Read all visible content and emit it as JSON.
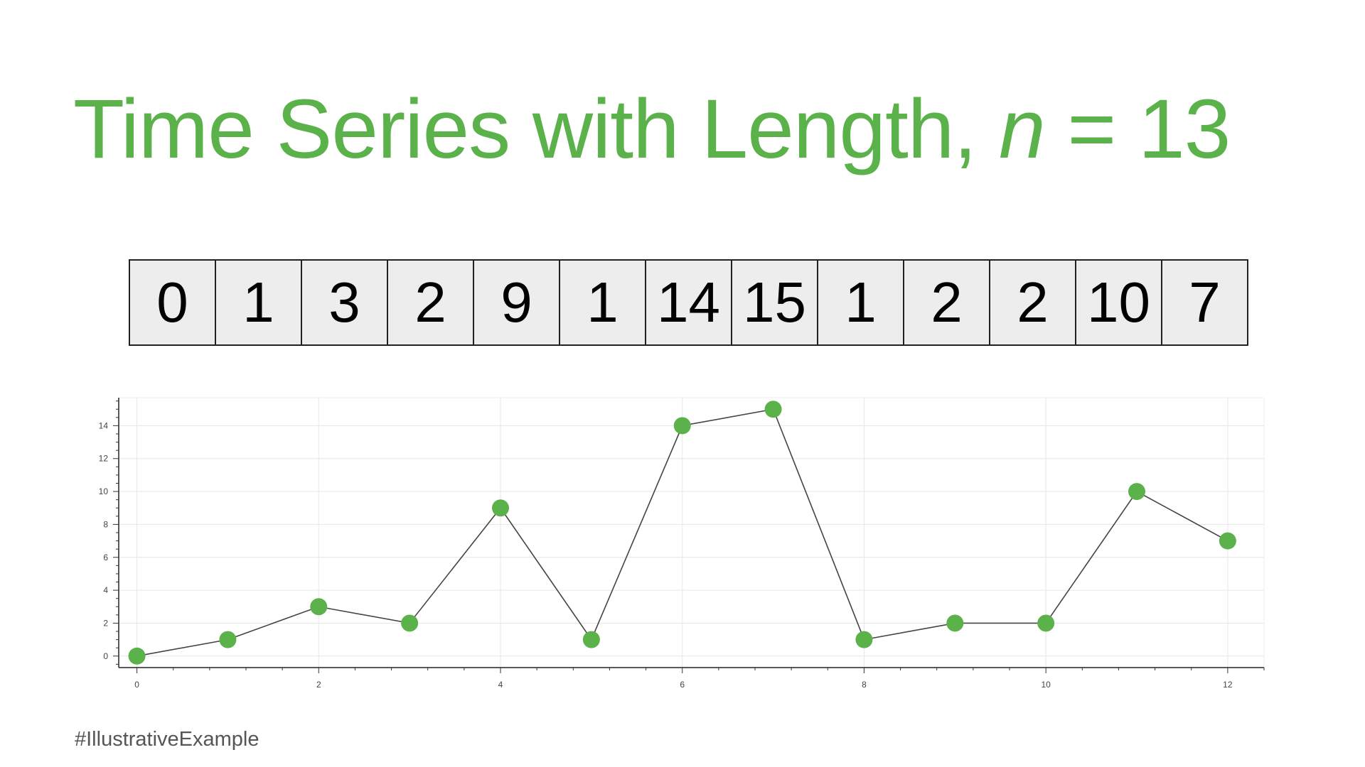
{
  "title": {
    "text": "Time Series with Length, ",
    "var": "n",
    "rest": " = 13"
  },
  "sequence": [
    0,
    1,
    3,
    2,
    9,
    1,
    14,
    15,
    1,
    2,
    2,
    10,
    7
  ],
  "hashtag": "#IllustrativeExample",
  "colors": {
    "accent": "#5bb14a",
    "line": "#444444",
    "cell_bg": "#ededed"
  },
  "chart_data": {
    "type": "line",
    "x": [
      0,
      1,
      2,
      3,
      4,
      5,
      6,
      7,
      8,
      9,
      10,
      11,
      12
    ],
    "series": [
      {
        "values": [
          0,
          1,
          3,
          2,
          9,
          1,
          14,
          15,
          1,
          2,
          2,
          10,
          7
        ]
      }
    ],
    "xticks": [
      0,
      2,
      4,
      6,
      8,
      10,
      12
    ],
    "yticks": [
      0,
      2,
      4,
      6,
      8,
      10,
      12,
      14
    ],
    "xlim": [
      -0.2,
      12.4
    ],
    "ylim": [
      -0.7,
      15.7
    ],
    "grid": true,
    "markers": true,
    "xlabel": "",
    "ylabel": ""
  }
}
